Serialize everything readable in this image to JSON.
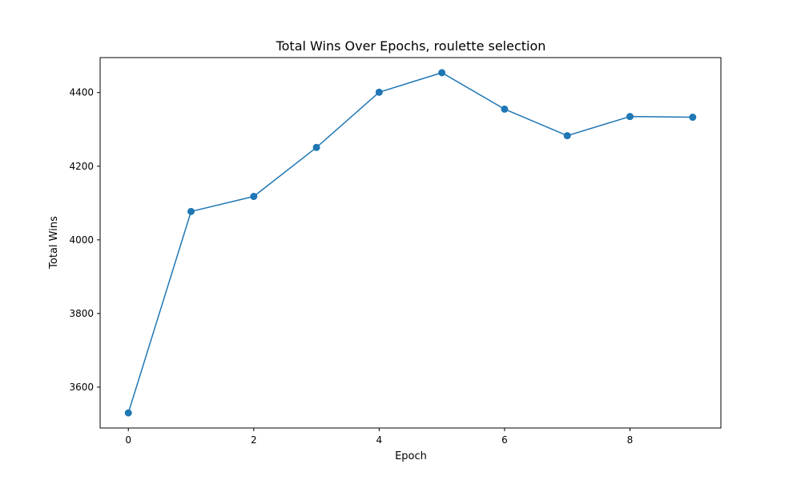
{
  "chart_data": {
    "type": "line",
    "title": "Total Wins Over Epochs, roulette selection",
    "xlabel": "Epoch",
    "ylabel": "Total Wins",
    "x": [
      0,
      1,
      2,
      3,
      4,
      5,
      6,
      7,
      8,
      9
    ],
    "series": [
      {
        "values": [
          3530,
          4077,
          4118,
          4251,
          4401,
          4454,
          4355,
          4283,
          4335,
          4333
        ],
        "color": "#1f77b4",
        "marker": "circle"
      }
    ],
    "xlim": [
      -0.45,
      9.45
    ],
    "ylim": [
      3489,
      4495
    ],
    "xticks": [
      "0",
      "2",
      "4",
      "6",
      "8"
    ],
    "yticks": [
      "3600",
      "3800",
      "4000",
      "4200",
      "4400"
    ],
    "grid": false,
    "legend": "none"
  }
}
